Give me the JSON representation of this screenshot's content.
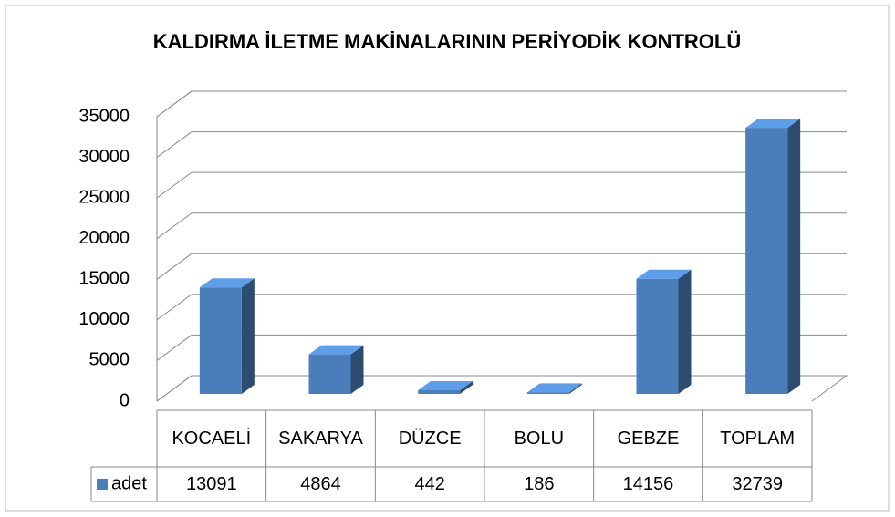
{
  "chart_data": {
    "type": "bar3d",
    "title": "KALDIRMA İLETME MAKİNALARININ PERİYODİK KONTROLÜ",
    "categories": [
      "KOCAELİ",
      "SAKARYA",
      "DÜZCE",
      "BOLU",
      "GEBZE",
      "TOPLAM"
    ],
    "series": [
      {
        "name": "adet",
        "color": "#4a7ebb",
        "values": [
          13091,
          4864,
          442,
          186,
          14156,
          32739
        ]
      }
    ],
    "ylim": [
      0,
      35000
    ],
    "yticks": [
      0,
      5000,
      10000,
      15000,
      20000,
      25000,
      30000,
      35000
    ],
    "grid": true,
    "data_table": true
  }
}
